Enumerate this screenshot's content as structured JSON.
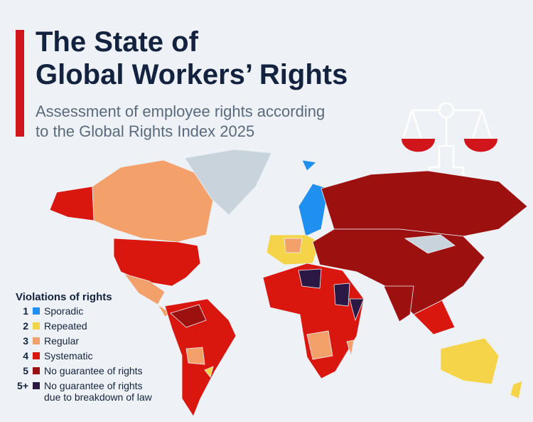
{
  "header": {
    "title_lines": [
      "The State of",
      "Global Workers’ Rights"
    ],
    "subtitle_lines": [
      "Assessment of employee rights according",
      "to the Global Rights Index 2025"
    ]
  },
  "legend": {
    "title": "Violations of rights",
    "items": [
      {
        "rating": "1",
        "label": [
          "Sporadic"
        ],
        "color": "#1f8ff0"
      },
      {
        "rating": "2",
        "label": [
          "Repeated"
        ],
        "color": "#f5d44a"
      },
      {
        "rating": "3",
        "label": [
          "Regular"
        ],
        "color": "#f4a06a"
      },
      {
        "rating": "4",
        "label": [
          "Systematic"
        ],
        "color": "#d9170f"
      },
      {
        "rating": "5",
        "label": [
          "No guarantee of rights"
        ],
        "color": "#9c1010"
      },
      {
        "rating": "5+",
        "label": [
          "No guarantee of rights",
          "due to breakdown of law"
        ],
        "color": "#2b1845"
      }
    ]
  }
}
